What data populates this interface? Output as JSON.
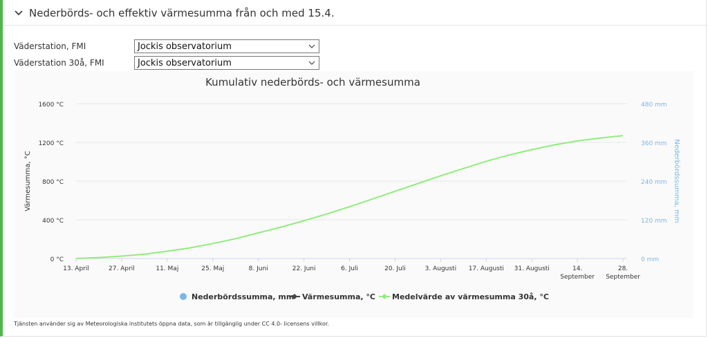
{
  "section": {
    "title": "Nederbörds- och effektiv värmesumma från och med 15.4."
  },
  "form": {
    "station_label": "Väderstation, FMI",
    "station_value": "Jockis observatorium",
    "station30_label": "Väderstation 30å, FMI",
    "station30_value": "Jockis observatorium"
  },
  "footer": {
    "text": "Tjänsten använder sig av Meteorologiska institutets öppna data, som är tillgänglig under CC 4.0- licensens villkor."
  },
  "chart_data": {
    "type": "line",
    "title": "Kumulativ nederbörds- och värmesumma",
    "ylabel": "Värmesumma, °C",
    "y2label": "Nederbördssumma, mm",
    "ylim": [
      0,
      1600
    ],
    "y2lim": [
      0,
      480
    ],
    "yticks": [
      "1600 °C",
      "1200 °C",
      "800 °C",
      "400 °C",
      "0 °C"
    ],
    "y2ticks": [
      "480 mm",
      "360 mm",
      "240 mm",
      "120 mm",
      "0 mm"
    ],
    "xticks": [
      [
        "13. April"
      ],
      [
        "27. April"
      ],
      [
        "11. Maj"
      ],
      [
        "25. Maj"
      ],
      [
        "8. Juni"
      ],
      [
        "22. Juni"
      ],
      [
        "6. Juli"
      ],
      [
        "20. Juli"
      ],
      [
        "3. Augusti"
      ],
      [
        "17. Augusti"
      ],
      [
        "31. Augusti"
      ],
      [
        "14.",
        "September"
      ],
      [
        "28.",
        "September"
      ]
    ],
    "grid": true,
    "legend": "bottom",
    "series": [
      {
        "name": "Nederbördssumma, mm",
        "color": "#7cb5ec",
        "marker": "circle",
        "values": []
      },
      {
        "name": "Värmesumma, °C",
        "color": "#434348",
        "marker": "diamond",
        "values": []
      },
      {
        "name": "Medelvärde av värmesumma 30å, °C",
        "color": "#90ed7d",
        "marker": "diamond",
        "x": [
          "13.4",
          "20.4",
          "27.4",
          "4.5",
          "11.5",
          "18.5",
          "25.5",
          "1.6",
          "8.6",
          "15.6",
          "22.6",
          "29.6",
          "6.7",
          "13.7",
          "20.7",
          "27.7",
          "3.8",
          "10.8",
          "17.8",
          "24.8",
          "31.8",
          "7.9",
          "14.9",
          "21.9",
          "28.9"
        ],
        "values": [
          0,
          10,
          25,
          45,
          75,
          110,
          155,
          205,
          265,
          325,
          390,
          460,
          535,
          615,
          695,
          775,
          855,
          930,
          1005,
          1070,
          1125,
          1175,
          1215,
          1245,
          1270
        ]
      }
    ],
    "colors": {
      "axis_left": "#333333",
      "axis_right": "#7cb5ec",
      "grid": "#e6e6e6",
      "accent": "#4db848"
    }
  }
}
